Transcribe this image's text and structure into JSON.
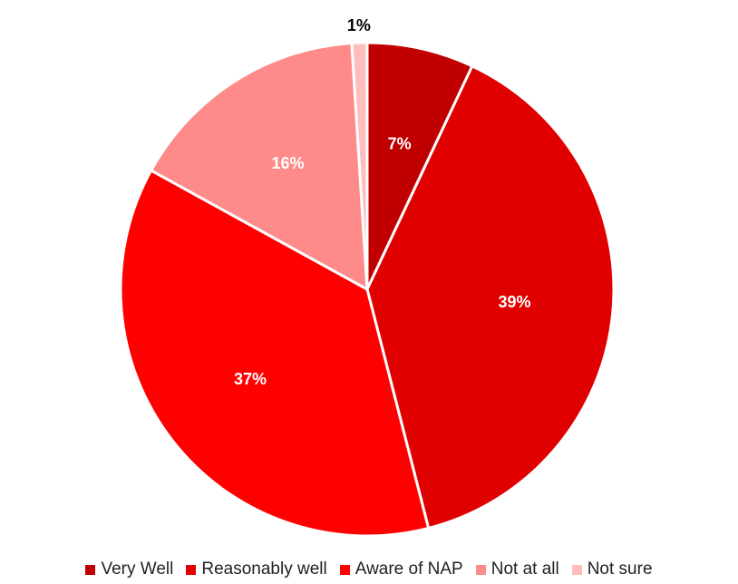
{
  "chart_data": {
    "type": "pie",
    "title": "",
    "slices": [
      {
        "name": "Very Well",
        "value": 7,
        "label": "7%",
        "color": "#C00000",
        "label_color": "#ffffff"
      },
      {
        "name": "Reasonably well",
        "value": 39,
        "label": "39%",
        "color": "#E00000",
        "label_color": "#ffffff"
      },
      {
        "name": "Aware of NAP",
        "value": 37,
        "label": "37%",
        "color": "#FF0000",
        "label_color": "#ffffff"
      },
      {
        "name": "Not at all",
        "value": 16,
        "label": "16%",
        "color": "#FF8A8A",
        "label_color": "#ffffff"
      },
      {
        "name": "Not sure",
        "value": 1,
        "label": "1%",
        "color": "#FFBDBD",
        "label_color": "#000000"
      }
    ],
    "start": "12 o'clock",
    "direction": "clockwise",
    "legend_position": "bottom"
  }
}
